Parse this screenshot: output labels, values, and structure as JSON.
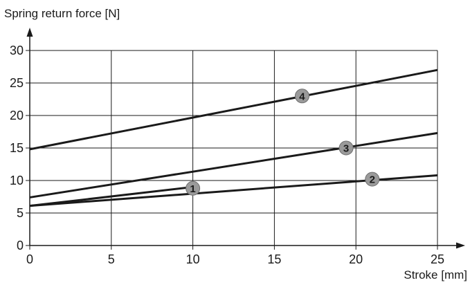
{
  "chart_data": {
    "type": "line",
    "title": "",
    "xlabel": "Stroke [mm]",
    "ylabel": "Spring return force [N]",
    "xlim": [
      0,
      25
    ],
    "ylim": [
      0,
      30
    ],
    "x_ticks": [
      "0",
      "5",
      "10",
      "15",
      "20",
      "25"
    ],
    "y_ticks": [
      "0",
      "5",
      "10",
      "15",
      "20",
      "25",
      "30"
    ],
    "grid": true,
    "legend": "none",
    "line_color": "#1a1a1a",
    "marker_color": "#9a9a9a",
    "series": [
      {
        "label": "1",
        "x": [
          0,
          10
        ],
        "y": [
          6.1,
          9.0
        ],
        "label_at": [
          10,
          8.8
        ]
      },
      {
        "label": "2",
        "x": [
          0,
          25
        ],
        "y": [
          6.1,
          10.8
        ],
        "label_at": [
          21,
          10.2
        ]
      },
      {
        "label": "3",
        "x": [
          0,
          25
        ],
        "y": [
          7.4,
          17.3
        ],
        "label_at": [
          19.4,
          15.0
        ]
      },
      {
        "label": "4",
        "x": [
          0,
          25
        ],
        "y": [
          14.8,
          27.0
        ],
        "label_at": [
          16.7,
          23.0
        ]
      }
    ]
  }
}
